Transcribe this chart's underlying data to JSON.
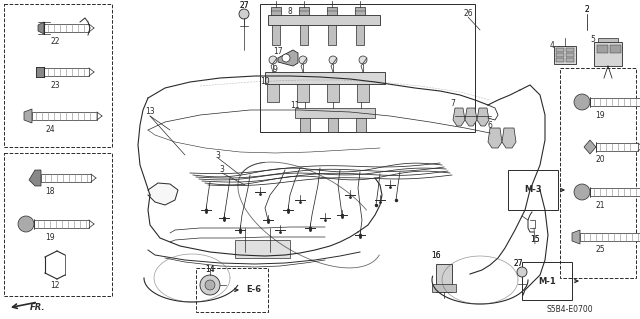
{
  "bg_color": "#ffffff",
  "fig_width": 6.4,
  "fig_height": 3.19,
  "dpi": 100,
  "diagram_code": "S5B4-E0700",
  "line_color": "#2a2a2a",
  "gray1": "#888888",
  "gray2": "#aaaaaa",
  "gray3": "#555555"
}
